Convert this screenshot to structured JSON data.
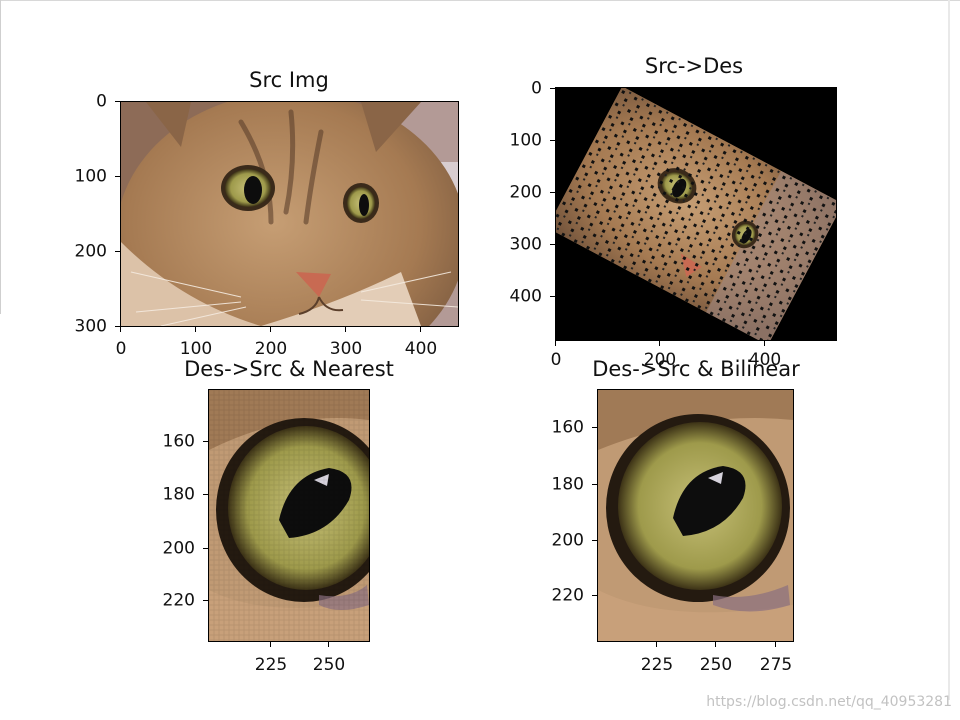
{
  "figure": {
    "watermark": "https://blog.csdn.net/qq_40953281"
  },
  "subplots": {
    "src": {
      "title": "Src Img",
      "x_ticks": [
        "0",
        "100",
        "200",
        "300",
        "400"
      ],
      "y_ticks": [
        "0",
        "100",
        "200",
        "300"
      ],
      "image": "cat-face-photo"
    },
    "src_to_des": {
      "title": "Src->Des",
      "x_ticks": [
        "0",
        "200",
        "400"
      ],
      "y_ticks": [
        "0",
        "100",
        "200",
        "300",
        "400"
      ],
      "image": "rotated-cat-with-holes"
    },
    "nearest": {
      "title": "Des->Src & Nearest",
      "x_ticks": [
        "225",
        "250"
      ],
      "y_ticks": [
        "160",
        "180",
        "200",
        "220"
      ],
      "image": "cat-eye-nearest"
    },
    "bilinear": {
      "title": "Des->Src & Bilinear",
      "x_ticks": [
        "225",
        "250",
        "275"
      ],
      "y_ticks": [
        "160",
        "180",
        "200",
        "220"
      ],
      "image": "cat-eye-bilinear"
    }
  },
  "colors": {
    "fur_light": "#c9a27a",
    "fur_dark": "#6e4e33",
    "eye_iris": "#a6a04e",
    "pupil": "#0d0d0d",
    "nose": "#c86a52",
    "background": "#000000"
  }
}
